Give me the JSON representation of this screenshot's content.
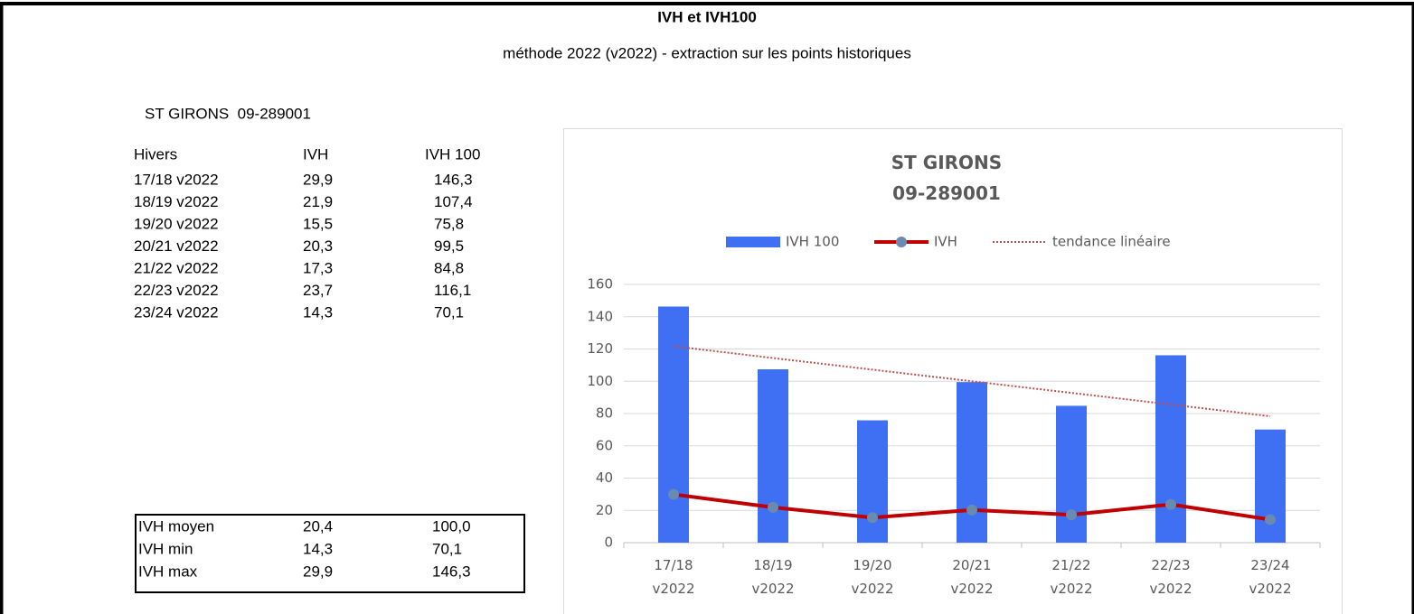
{
  "sheet": {
    "title": "IVH et IVH100",
    "subtitle": "méthode 2022 (v2022) - extraction sur les points historiques",
    "station": "ST GIRONS  09-289001"
  },
  "table": {
    "header": [
      "Hivers",
      "IVH",
      "IVH 100"
    ],
    "rows": [
      [
        "17/18 v2022",
        "29,9",
        "146,3"
      ],
      [
        "18/19 v2022",
        "21,9",
        "107,4"
      ],
      [
        "19/20 v2022",
        "15,5",
        "75,8"
      ],
      [
        "20/21 v2022",
        "20,3",
        "99,5"
      ],
      [
        "21/22 v2022",
        "17,3",
        "84,8"
      ],
      [
        "22/23 v2022",
        "23,7",
        "116,1"
      ],
      [
        "23/24 v2022",
        "14,3",
        "70,1"
      ]
    ]
  },
  "stats": {
    "rows": [
      [
        "IVH moyen",
        "20,4",
        "100,0"
      ],
      [
        "IVH min",
        "14,3",
        "70,1"
      ],
      [
        "IVH max",
        "29,9",
        "146,3"
      ]
    ]
  },
  "chart_data": {
    "type": "bar",
    "title": "ST GIRONS\n09-289001",
    "categories": [
      "17/18\nv2022",
      "18/19\nv2022",
      "19/20\nv2022",
      "20/21\nv2022",
      "21/22\nv2022",
      "22/23\nv2022",
      "23/24\nv2022"
    ],
    "series": [
      {
        "name": "IVH 100",
        "type": "bar",
        "color": "#3f6ff2",
        "values": [
          146.3,
          107.4,
          75.8,
          99.5,
          84.8,
          116.1,
          70.1
        ]
      },
      {
        "name": "IVH",
        "type": "line",
        "color": "#c00000",
        "marker_color": "#6a8bb0",
        "values": [
          29.9,
          21.9,
          15.5,
          20.3,
          17.3,
          23.7,
          14.3
        ]
      },
      {
        "name": "tendance linéaire",
        "type": "dotted",
        "color": "#c0504d",
        "values": [
          121.7,
          114.4,
          107.2,
          100.0,
          92.8,
          85.6,
          78.3
        ]
      }
    ],
    "ylim": [
      0,
      160
    ],
    "yticks": [
      0,
      20,
      40,
      60,
      80,
      100,
      120,
      140,
      160
    ],
    "grid": true,
    "legend": "top"
  }
}
